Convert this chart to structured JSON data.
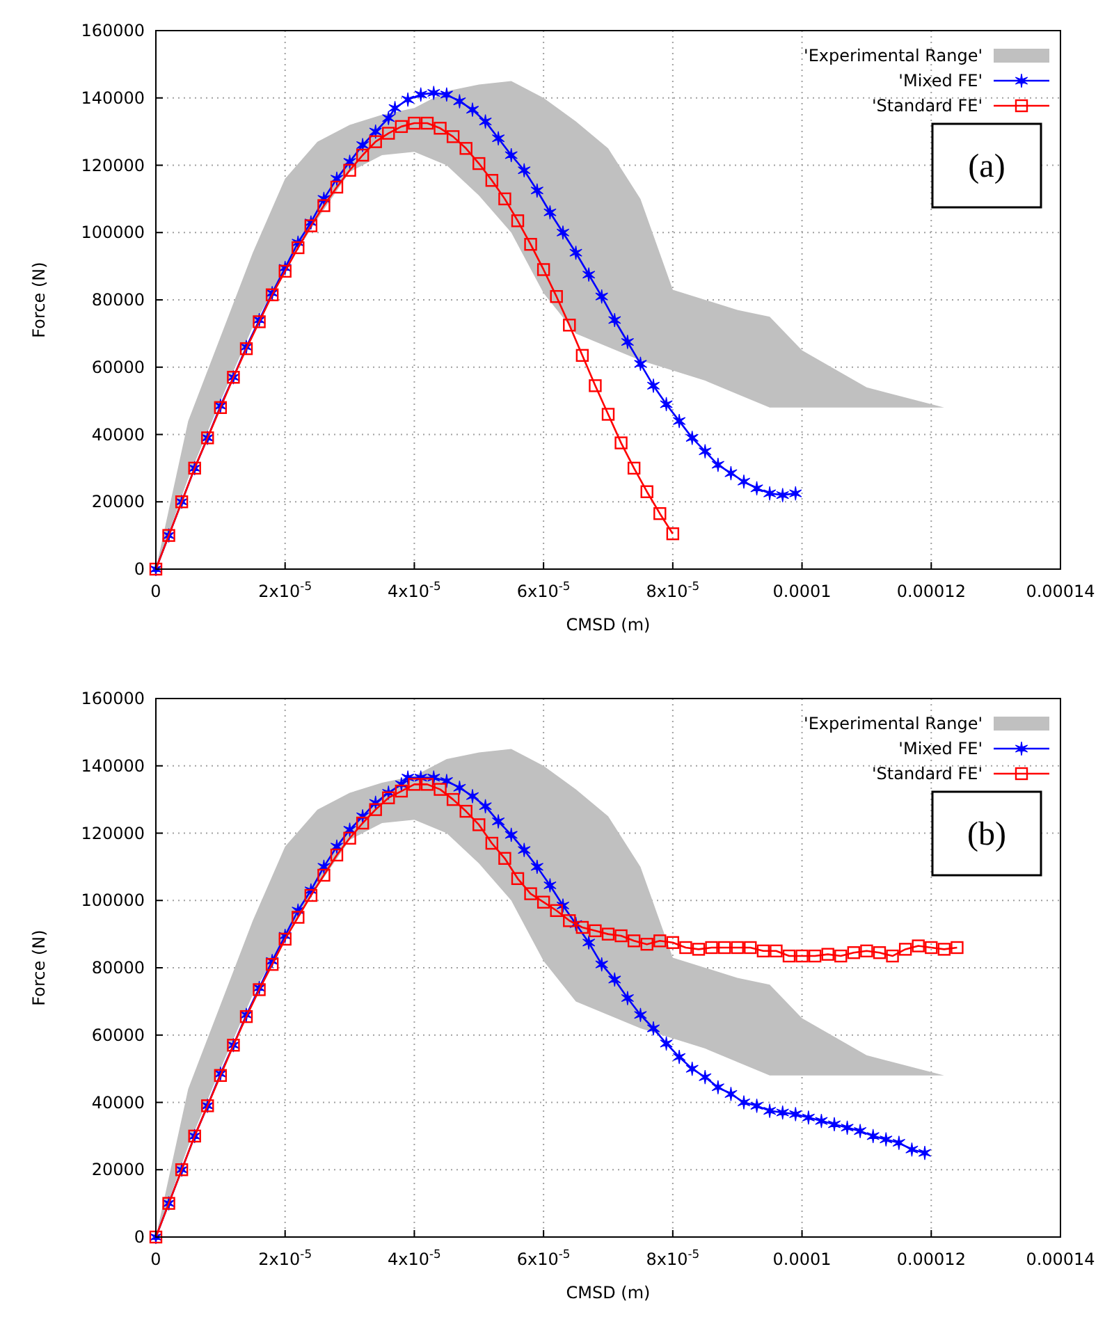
{
  "chart_data": [
    {
      "type": "line",
      "xlabel": "CMSD (m)",
      "ylabel": "Force (N)",
      "annotations": [
        "(a)"
      ],
      "xlim": [
        0,
        0.00014
      ],
      "ylim": [
        0,
        160000
      ],
      "xticks": [
        0,
        {
          "value": 2e-05,
          "label": "2x10$^{-5}$"
        },
        {
          "value": 4e-05,
          "label": "4x10$^{-5}$"
        },
        {
          "value": 6e-05,
          "label": "6x10$^{-5}$"
        },
        {
          "value": 8e-05,
          "label": "8x10$^{-5}$"
        },
        {
          "value": 0.0001,
          "label": "0.0001"
        },
        {
          "value": 0.00012,
          "label": "0.00012"
        },
        {
          "value": 0.00014,
          "label": "0.00014"
        }
      ],
      "yticks": [
        0,
        20000,
        40000,
        60000,
        80000,
        100000,
        120000,
        140000,
        160000
      ],
      "grid": true,
      "legend": "top right",
      "series": [
        {
          "name": "'Experimental Range'",
          "type": "area",
          "color": "#c0c0c0",
          "x": [
            0,
            5e-06,
            1e-05,
            1.5e-05,
            2e-05,
            2.5e-05,
            3e-05,
            3.5e-05,
            4e-05,
            4.5e-05,
            5e-05,
            5.5e-05,
            6e-05,
            6.5e-05,
            7e-05,
            7.5e-05,
            8e-05,
            8.5e-05,
            9e-05,
            9.5e-05,
            0.0001,
            0.00011,
            0.000122
          ],
          "values": [
            null,
            null,
            null,
            null,
            null,
            null,
            null,
            null,
            null,
            null,
            null,
            null,
            null,
            null,
            null,
            null,
            null,
            null,
            null,
            null,
            null,
            null,
            null
          ],
          "lower": [
            0,
            27000,
            50000,
            72000,
            89000,
            104000,
            118000,
            123000,
            124000,
            120000,
            111000,
            100000,
            82000,
            70000,
            66000,
            62000,
            59000,
            56000,
            52000,
            48000,
            48000,
            48000,
            48000
          ],
          "upper": [
            0,
            44000,
            69000,
            94000,
            116000,
            127000,
            132000,
            135000,
            137000,
            142000,
            144000,
            145000,
            140000,
            133000,
            125000,
            110000,
            83000,
            80000,
            77000,
            75000,
            65000,
            54000,
            48000
          ]
        },
        {
          "name": "'Mixed FE'",
          "color": "#0000ff",
          "marker": "cross",
          "x": [
            0,
            2e-06,
            4e-06,
            6e-06,
            8e-06,
            1e-05,
            1.2e-05,
            1.4e-05,
            1.6e-05,
            1.8e-05,
            2e-05,
            2.2e-05,
            2.4e-05,
            2.6e-05,
            2.8e-05,
            3e-05,
            3.2e-05,
            3.4e-05,
            3.6e-05,
            3.7e-05,
            3.9e-05,
            4.1e-05,
            4.3e-05,
            4.5e-05,
            4.7e-05,
            4.9e-05,
            5.1e-05,
            5.3e-05,
            5.5e-05,
            5.7e-05,
            5.9e-05,
            6.1e-05,
            6.3e-05,
            6.5e-05,
            6.7e-05,
            6.9e-05,
            7.1e-05,
            7.3e-05,
            7.5e-05,
            7.7e-05,
            7.9e-05,
            8.1e-05,
            8.3e-05,
            8.5e-05,
            8.7e-05,
            8.9e-05,
            9.1e-05,
            9.3e-05,
            9.5e-05,
            9.7e-05,
            9.9e-05
          ],
          "values": [
            0,
            10000,
            20000,
            30000,
            39000,
            48500,
            57000,
            66000,
            74000,
            82000,
            89500,
            97000,
            103000,
            110000,
            116000,
            121000,
            126000,
            130000,
            134000,
            137000,
            139500,
            141000,
            141500,
            141000,
            139000,
            136500,
            133000,
            128000,
            123000,
            118500,
            112500,
            106000,
            100000,
            94000,
            87500,
            81000,
            74000,
            67500,
            61000,
            54500,
            49000,
            44000,
            39000,
            35000,
            31000,
            28500,
            26000,
            24000,
            22500,
            22000,
            22500
          ]
        },
        {
          "name": "'Standard FE'",
          "color": "#ff0000",
          "marker": "square",
          "x": [
            0,
            2e-06,
            4e-06,
            6e-06,
            8e-06,
            1e-05,
            1.2e-05,
            1.4e-05,
            1.6e-05,
            1.8e-05,
            2e-05,
            2.2e-05,
            2.4e-05,
            2.6e-05,
            2.8e-05,
            3e-05,
            3.2e-05,
            3.4e-05,
            3.6e-05,
            3.8e-05,
            4e-05,
            4.2e-05,
            4.4e-05,
            4.6e-05,
            4.8e-05,
            5e-05,
            5.2e-05,
            5.4e-05,
            5.6e-05,
            5.8e-05,
            6e-05,
            6.2e-05,
            6.4e-05,
            6.6e-05,
            6.8e-05,
            7e-05,
            7.2e-05,
            7.4e-05,
            7.6e-05,
            7.8e-05,
            8e-05
          ],
          "values": [
            0,
            10000,
            20000,
            30000,
            39000,
            48000,
            57000,
            65500,
            73500,
            81500,
            88500,
            95500,
            102000,
            108000,
            113500,
            118500,
            123000,
            127000,
            129500,
            131500,
            132500,
            132500,
            131000,
            128500,
            125000,
            120500,
            115500,
            110000,
            103500,
            96500,
            89000,
            81000,
            72500,
            63500,
            54500,
            46000,
            37500,
            30000,
            23000,
            16500,
            10500
          ]
        }
      ]
    },
    {
      "type": "line",
      "xlabel": "CMSD (m)",
      "ylabel": "Force (N)",
      "annotations": [
        "(b)"
      ],
      "xlim": [
        0,
        0.00014
      ],
      "ylim": [
        0,
        160000
      ],
      "xticks": [
        0,
        {
          "value": 2e-05,
          "label": "2x10$^{-5}$"
        },
        {
          "value": 4e-05,
          "label": "4x10$^{-5}$"
        },
        {
          "value": 6e-05,
          "label": "6x10$^{-5}$"
        },
        {
          "value": 8e-05,
          "label": "8x10$^{-5}$"
        },
        {
          "value": 0.0001,
          "label": "0.0001"
        },
        {
          "value": 0.00012,
          "label": "0.00012"
        },
        {
          "value": 0.00014,
          "label": "0.00014"
        }
      ],
      "yticks": [
        0,
        20000,
        40000,
        60000,
        80000,
        100000,
        120000,
        140000,
        160000
      ],
      "grid": true,
      "legend": "top right",
      "series": [
        {
          "name": "'Experimental Range'",
          "type": "area",
          "color": "#c0c0c0",
          "x": [
            0,
            5e-06,
            1e-05,
            1.5e-05,
            2e-05,
            2.5e-05,
            3e-05,
            3.5e-05,
            4e-05,
            4.5e-05,
            5e-05,
            5.5e-05,
            6e-05,
            6.5e-05,
            7e-05,
            7.5e-05,
            8e-05,
            8.5e-05,
            9e-05,
            9.5e-05,
            0.0001,
            0.00011,
            0.000122
          ],
          "values": [
            null,
            null,
            null,
            null,
            null,
            null,
            null,
            null,
            null,
            null,
            null,
            null,
            null,
            null,
            null,
            null,
            null,
            null,
            null,
            null,
            null,
            null,
            null
          ],
          "lower": [
            0,
            27000,
            50000,
            72000,
            89000,
            104000,
            118000,
            123000,
            124000,
            120000,
            111000,
            100000,
            82000,
            70000,
            66000,
            62000,
            59000,
            56000,
            52000,
            48000,
            48000,
            48000,
            48000
          ],
          "upper": [
            0,
            44000,
            69000,
            94000,
            116000,
            127000,
            132000,
            135000,
            137000,
            142000,
            144000,
            145000,
            140000,
            133000,
            125000,
            110000,
            83000,
            80000,
            77000,
            75000,
            65000,
            54000,
            48000
          ]
        },
        {
          "name": "'Mixed FE'",
          "color": "#0000ff",
          "marker": "cross",
          "x": [
            0,
            2e-06,
            4e-06,
            6e-06,
            8e-06,
            1e-05,
            1.2e-05,
            1.4e-05,
            1.6e-05,
            1.8e-05,
            2e-05,
            2.2e-05,
            2.4e-05,
            2.6e-05,
            2.8e-05,
            3e-05,
            3.2e-05,
            3.4e-05,
            3.6e-05,
            3.8e-05,
            3.9e-05,
            4.1e-05,
            4.3e-05,
            4.5e-05,
            4.7e-05,
            4.9e-05,
            5.1e-05,
            5.3e-05,
            5.5e-05,
            5.7e-05,
            5.9e-05,
            6.1e-05,
            6.3e-05,
            6.5e-05,
            6.7e-05,
            6.9e-05,
            7.1e-05,
            7.3e-05,
            7.5e-05,
            7.7e-05,
            7.9e-05,
            8.1e-05,
            8.3e-05,
            8.5e-05,
            8.7e-05,
            8.9e-05,
            9.1e-05,
            9.3e-05,
            9.5e-05,
            9.7e-05,
            9.9e-05,
            0.000101,
            0.000103,
            0.000105,
            0.000107,
            0.000109,
            0.000111,
            0.000113,
            0.000115,
            0.000117,
            0.000119
          ],
          "values": [
            0,
            10000,
            20000,
            30000,
            39000,
            48500,
            57000,
            66000,
            74000,
            82000,
            89500,
            97000,
            103000,
            110000,
            116000,
            121000,
            125000,
            129000,
            132000,
            134500,
            136500,
            136500,
            136500,
            135500,
            133500,
            131000,
            128000,
            123500,
            119500,
            115000,
            110000,
            104500,
            98500,
            93000,
            87500,
            81000,
            76500,
            71000,
            66000,
            62000,
            57500,
            53500,
            50000,
            47500,
            44500,
            42500,
            40000,
            39000,
            37500,
            37000,
            36500,
            35500,
            34500,
            33500,
            32500,
            31500,
            30000,
            29000,
            28000,
            26000,
            25000
          ]
        },
        {
          "name": "'Standard FE'",
          "color": "#ff0000",
          "marker": "square",
          "x": [
            0,
            2e-06,
            4e-06,
            6e-06,
            8e-06,
            1e-05,
            1.2e-05,
            1.4e-05,
            1.6e-05,
            1.8e-05,
            2e-05,
            2.2e-05,
            2.4e-05,
            2.6e-05,
            2.8e-05,
            3e-05,
            3.2e-05,
            3.4e-05,
            3.6e-05,
            3.8e-05,
            4e-05,
            4.2e-05,
            4.4e-05,
            4.6e-05,
            4.8e-05,
            5e-05,
            5.2e-05,
            5.4e-05,
            5.6e-05,
            5.8e-05,
            6e-05,
            6.2e-05,
            6.4e-05,
            6.6e-05,
            6.8e-05,
            7e-05,
            7.2e-05,
            7.4e-05,
            7.6e-05,
            7.8e-05,
            8e-05,
            8.2e-05,
            8.4e-05,
            8.6e-05,
            8.8e-05,
            9e-05,
            9.2e-05,
            9.4e-05,
            9.6e-05,
            9.8e-05,
            0.0001,
            0.000102,
            0.000104,
            0.000106,
            0.000108,
            0.00011,
            0.000112,
            0.000114,
            0.000116,
            0.000118,
            0.00012,
            0.000122,
            0.000124
          ],
          "values": [
            0,
            10000,
            20000,
            30000,
            39000,
            48000,
            57000,
            65500,
            73500,
            81000,
            88500,
            95000,
            101500,
            107500,
            113500,
            118500,
            123000,
            127000,
            130500,
            132500,
            134500,
            134500,
            133000,
            130000,
            126500,
            122500,
            117000,
            112500,
            106500,
            102000,
            99500,
            97000,
            94000,
            92000,
            91000,
            90000,
            89500,
            88000,
            87000,
            88000,
            87500,
            86000,
            85500,
            86000,
            86000,
            86000,
            86000,
            85000,
            85000,
            83500,
            83500,
            83500,
            84000,
            83500,
            84500,
            85000,
            84500,
            83500,
            85500,
            86500,
            86000,
            85500,
            86000
          ]
        }
      ]
    }
  ]
}
